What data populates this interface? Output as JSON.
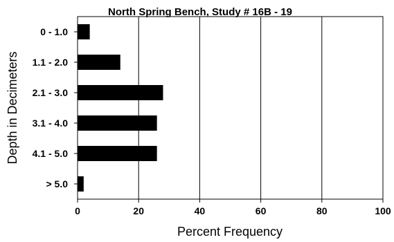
{
  "chart_data": {
    "type": "bar",
    "orientation": "horizontal",
    "title": "North Spring Bench, Study # 16B - 19",
    "xlabel": "Percent Frequency",
    "ylabel": "Depth in Decimeters",
    "categories": [
      "0 - 1.0",
      "1.1 - 2.0",
      "2.1 - 3.0",
      "3.1 - 4.0",
      "4.1 - 5.0",
      "> 5.0"
    ],
    "values": [
      4,
      14,
      28,
      26,
      26,
      2
    ],
    "xlim": [
      0,
      100
    ],
    "xticks": [
      "0",
      "20",
      "40",
      "60",
      "80",
      "100"
    ],
    "grid": "vertical",
    "bar_color": "#000000"
  }
}
